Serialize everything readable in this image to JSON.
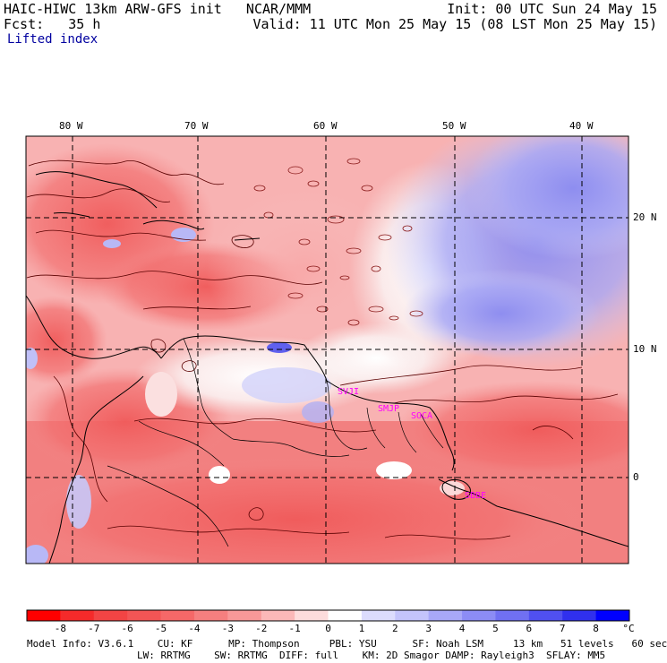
{
  "header": {
    "line1_left": "HAIC-HIWC 13km ARW-GFS init   NCAR/MMM",
    "line2_left": "Fcst:   35 h",
    "line1_right": "Init: 00 UTC Sun 24 May 15",
    "line2_right": "Valid: 11 UTC Mon 25 May 15 (08 LST Mon 25 May 15)"
  },
  "field_name": "Lifted index",
  "longitude_labels": [
    "80 W",
    "70 W",
    "60 W",
    "50 W",
    "40 W"
  ],
  "latitude_labels": [
    "20 N",
    "10 N",
    "0"
  ],
  "stations": [
    "SVJI",
    "SMJP",
    "SOCA",
    "SBBE"
  ],
  "colorbar": {
    "unit": "°C",
    "ticks": [
      "-8",
      "-7",
      "-6",
      "-5",
      "-4",
      "-3",
      "-2",
      "-1",
      "0",
      "1",
      "2",
      "3",
      "4",
      "5",
      "6",
      "7",
      "8"
    ],
    "colors": [
      "#ff0000",
      "#f52a2a",
      "#f24444",
      "#f25555",
      "#f56868",
      "#f57f7f",
      "#f89898",
      "#fbb8b8",
      "#fddcdc",
      "#ffffff",
      "#dcdcfd",
      "#c4c4fb",
      "#a8a8f8",
      "#8c8cf5",
      "#7070f2",
      "#5050f0",
      "#3030ee",
      "#0000ff"
    ]
  },
  "model_info": {
    "line1": "Model Info: V3.6.1    CU: KF      MP: Thompson     PBL: YSU      SF: Noah LSM     13 km   51 levels   60 sec",
    "line2": "LW: RRTMG    SW: RRTMG  DIFF: full    KM: 2D Smagor DAMP: Rayleigh3  SFLAY: MM5"
  }
}
